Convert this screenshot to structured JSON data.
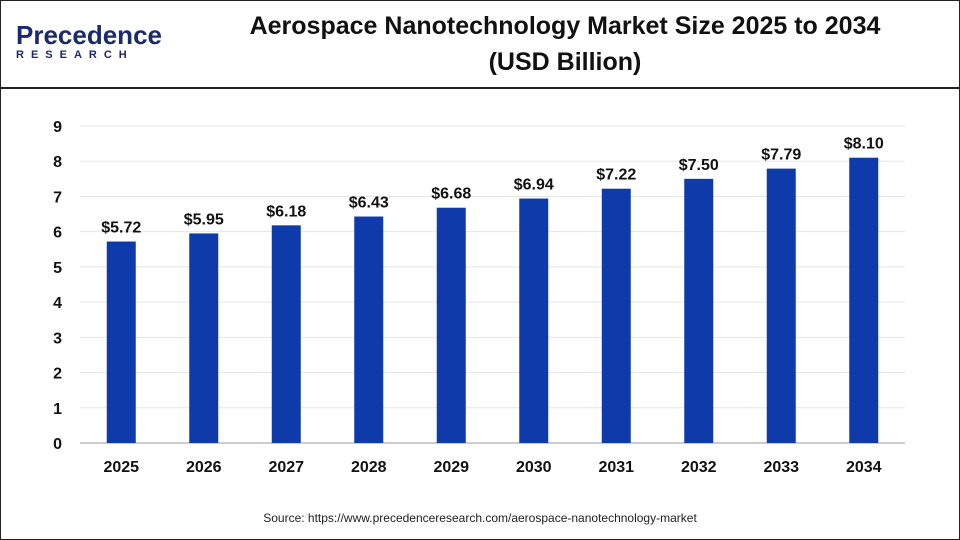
{
  "logo": {
    "line1": "Precedence",
    "line2": "RESEARCH"
  },
  "chart_data": {
    "type": "bar",
    "title": "Aerospace Nanotechnology Market Size 2025 to 2034 (USD Billion)",
    "title_lines": [
      "Aerospace Nanotechnology Market Size 2025 to 2034",
      "(USD Billion)"
    ],
    "categories": [
      "2025",
      "2026",
      "2027",
      "2028",
      "2029",
      "2030",
      "2031",
      "2032",
      "2033",
      "2034"
    ],
    "values": [
      5.72,
      5.95,
      6.18,
      6.43,
      6.68,
      6.94,
      7.22,
      7.5,
      7.79,
      8.1
    ],
    "data_labels": [
      "$5.72",
      "$5.95",
      "$6.18",
      "$6.43",
      "$6.68",
      "$6.94",
      "$7.22",
      "$7.50",
      "$7.79",
      "$8.10"
    ],
    "xlabel": "",
    "ylabel": "",
    "ylim": [
      0,
      9
    ],
    "yticks": [
      0,
      1,
      2,
      3,
      4,
      5,
      6,
      7,
      8,
      9
    ],
    "grid": true,
    "bar_color": "#0f3aaa"
  },
  "source": "Source: https://www.precedenceresearch.com/aerospace-nanotechnology-market"
}
